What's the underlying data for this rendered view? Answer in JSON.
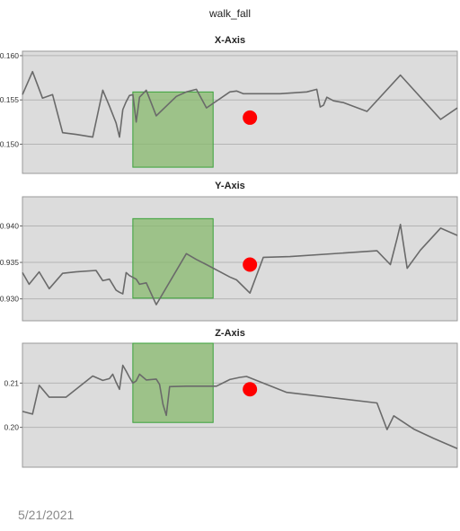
{
  "chart_title": "walk_fall",
  "footer": {
    "date": "5/21/2021"
  },
  "chart_data": [
    {
      "type": "line",
      "title": "X-Axis",
      "ylim": [
        0.1467,
        0.1605
      ],
      "yticks": [
        0.15,
        0.155,
        0.16
      ],
      "ytick_labels": [
        "0.150",
        "0.155",
        "0.160"
      ],
      "grid": true,
      "x": [
        0,
        3,
        6,
        9,
        12,
        16,
        21,
        24,
        26,
        28,
        29,
        30,
        31,
        32,
        33,
        34,
        35,
        37,
        40,
        46,
        49,
        52,
        55,
        62,
        64,
        66,
        77,
        85,
        88,
        89,
        90,
        91,
        93,
        96,
        103,
        113,
        125,
        130
      ],
      "values": [
        0.1556,
        0.1582,
        0.1552,
        0.1556,
        0.1513,
        0.1511,
        0.1508,
        0.1561,
        0.1543,
        0.1524,
        0.1508,
        0.1539,
        0.1548,
        0.1555,
        0.1556,
        0.1525,
        0.1553,
        0.1561,
        0.1532,
        0.1554,
        0.1559,
        0.1562,
        0.1541,
        0.1559,
        0.156,
        0.1557,
        0.1557,
        0.1559,
        0.1562,
        0.1542,
        0.1544,
        0.1553,
        0.1549,
        0.1547,
        0.1537,
        0.1578,
        0.1528,
        0.1541
      ],
      "highlight": {
        "x_range": [
          33,
          57
        ],
        "y_range": [
          0.1474,
          0.1559
        ],
        "color": "#88b96e"
      },
      "marker": {
        "x": 68,
        "y": 0.153,
        "color": "#ff0000"
      }
    },
    {
      "type": "line",
      "title": "Y-Axis",
      "ylim": [
        0.927,
        0.944
      ],
      "yticks": [
        0.93,
        0.935,
        0.94
      ],
      "ytick_labels": [
        "0.930",
        "0.935",
        "0.940"
      ],
      "grid": true,
      "x": [
        0,
        2,
        5,
        8,
        12,
        16,
        22,
        24,
        26,
        28,
        29,
        30,
        31,
        32,
        34,
        35,
        37,
        40,
        49,
        52,
        55,
        62,
        64,
        68,
        72,
        80,
        106,
        110,
        112,
        113,
        115,
        119,
        125,
        130
      ],
      "values": [
        0.9336,
        0.932,
        0.9337,
        0.9314,
        0.9335,
        0.9337,
        0.9339,
        0.9325,
        0.9327,
        0.9312,
        0.9309,
        0.9307,
        0.9336,
        0.9332,
        0.9327,
        0.932,
        0.9322,
        0.9292,
        0.9362,
        0.9354,
        0.9347,
        0.933,
        0.9326,
        0.9308,
        0.9357,
        0.9358,
        0.9366,
        0.9347,
        0.9383,
        0.9402,
        0.9342,
        0.9367,
        0.9397,
        0.9387
      ],
      "highlight": {
        "x_range": [
          33,
          57
        ],
        "y_range": [
          0.9301,
          0.941
        ],
        "color": "#88b96e"
      },
      "marker": {
        "x": 68,
        "y": 0.9347,
        "color": "#ff0000"
      }
    },
    {
      "type": "line",
      "title": "Z-Axis",
      "ylim": [
        0.191,
        0.219
      ],
      "yticks": [
        0.2,
        0.21
      ],
      "ytick_labels": [
        "0.20",
        "0.21"
      ],
      "grid": true,
      "x": [
        0,
        3,
        5,
        8,
        13,
        21,
        24,
        26,
        27,
        28,
        29,
        30,
        31,
        32,
        33,
        34,
        35,
        37,
        40,
        41,
        42,
        43,
        44,
        49,
        58,
        62,
        65,
        67,
        79,
        106,
        109,
        111,
        117,
        123,
        130
      ],
      "values": [
        0.2036,
        0.203,
        0.2095,
        0.2068,
        0.2068,
        0.2116,
        0.2106,
        0.211,
        0.212,
        0.2102,
        0.2086,
        0.214,
        0.2127,
        0.2113,
        0.21,
        0.2105,
        0.212,
        0.2107,
        0.2109,
        0.2097,
        0.2052,
        0.2027,
        0.2092,
        0.2093,
        0.2093,
        0.2108,
        0.2113,
        0.2115,
        0.2079,
        0.2055,
        0.1995,
        0.2026,
        0.1996,
        0.1975,
        0.1952
      ],
      "highlight": {
        "x_range": [
          33,
          57
        ],
        "y_range": [
          0.2011,
          0.219
        ],
        "color": "#88b96e"
      },
      "marker": {
        "x": 68,
        "y": 0.2086,
        "color": "#ff0000"
      }
    }
  ]
}
